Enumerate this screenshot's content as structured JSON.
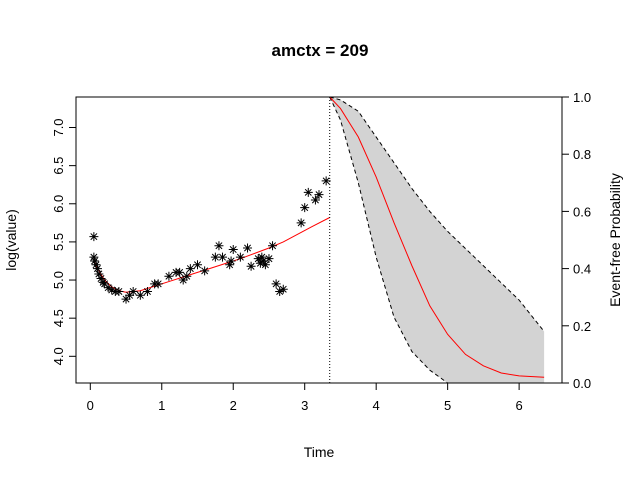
{
  "chart_data": {
    "type": "scatter",
    "title": "amctx = 209",
    "xlabel": "Time",
    "ylabel_left": "log(value)",
    "ylabel_right": "Event-free Probability",
    "xlim": [
      -0.2,
      6.6
    ],
    "ylim_left": [
      3.65,
      7.4
    ],
    "ylim_right": [
      0.0,
      1.0
    ],
    "x_ticks": [
      0,
      1,
      2,
      3,
      4,
      5,
      6
    ],
    "y_left_ticks": [
      4.0,
      4.5,
      5.0,
      5.5,
      6.0,
      6.5,
      7.0
    ],
    "y_right_ticks": [
      0.0,
      0.2,
      0.4,
      0.6,
      0.8,
      1.0
    ],
    "landmark_time": 3.35,
    "observations": {
      "marker": "asterisk",
      "points": [
        [
          0.05,
          5.57
        ],
        [
          0.05,
          5.3
        ],
        [
          0.06,
          5.25
        ],
        [
          0.08,
          5.2
        ],
        [
          0.1,
          5.15
        ],
        [
          0.12,
          5.08
        ],
        [
          0.15,
          5.02
        ],
        [
          0.18,
          4.97
        ],
        [
          0.2,
          4.95
        ],
        [
          0.25,
          4.9
        ],
        [
          0.3,
          4.87
        ],
        [
          0.35,
          4.85
        ],
        [
          0.4,
          4.85
        ],
        [
          0.5,
          4.75
        ],
        [
          0.55,
          4.8
        ],
        [
          0.6,
          4.85
        ],
        [
          0.7,
          4.8
        ],
        [
          0.8,
          4.85
        ],
        [
          0.9,
          4.95
        ],
        [
          0.95,
          4.95
        ],
        [
          1.1,
          5.05
        ],
        [
          1.2,
          5.1
        ],
        [
          1.25,
          5.1
        ],
        [
          1.3,
          5.0
        ],
        [
          1.35,
          5.05
        ],
        [
          1.4,
          5.15
        ],
        [
          1.5,
          5.2
        ],
        [
          1.6,
          5.12
        ],
        [
          1.75,
          5.3
        ],
        [
          1.8,
          5.45
        ],
        [
          1.85,
          5.3
        ],
        [
          1.95,
          5.2
        ],
        [
          1.97,
          5.25
        ],
        [
          2.0,
          5.4
        ],
        [
          2.1,
          5.3
        ],
        [
          2.2,
          5.42
        ],
        [
          2.25,
          5.18
        ],
        [
          2.35,
          5.28
        ],
        [
          2.38,
          5.22
        ],
        [
          2.4,
          5.3
        ],
        [
          2.42,
          5.25
        ],
        [
          2.45,
          5.2
        ],
        [
          2.5,
          5.28
        ],
        [
          2.55,
          5.45
        ],
        [
          2.6,
          4.95
        ],
        [
          2.65,
          4.85
        ],
        [
          2.7,
          4.88
        ],
        [
          2.95,
          5.75
        ],
        [
          3.0,
          5.95
        ],
        [
          3.05,
          6.15
        ],
        [
          3.15,
          6.05
        ],
        [
          3.2,
          6.12
        ],
        [
          3.3,
          6.3
        ]
      ]
    },
    "longitudinal_fit": {
      "color": "#ff0000",
      "x": [
        0.05,
        0.1,
        0.2,
        0.3,
        0.4,
        0.5,
        0.7,
        0.9,
        1.1,
        1.3,
        1.5,
        1.7,
        1.9,
        2.1,
        2.3,
        2.5,
        2.7,
        2.9,
        3.1,
        3.35
      ],
      "y": [
        5.25,
        5.15,
        5.0,
        4.91,
        4.86,
        4.84,
        4.86,
        4.92,
        4.98,
        5.04,
        5.1,
        5.16,
        5.22,
        5.28,
        5.35,
        5.42,
        5.5,
        5.6,
        5.7,
        5.82
      ]
    },
    "survival": {
      "line_color": "#ff0000",
      "band_color": "#d3d3d3",
      "x": [
        3.35,
        3.5,
        3.75,
        4.0,
        4.25,
        4.5,
        4.75,
        5.0,
        5.25,
        5.5,
        5.75,
        6.0,
        6.35
      ],
      "est": [
        1.0,
        0.96,
        0.86,
        0.72,
        0.56,
        0.41,
        0.27,
        0.17,
        0.1,
        0.06,
        0.035,
        0.025,
        0.02
      ],
      "lower": [
        1.0,
        0.92,
        0.7,
        0.44,
        0.23,
        0.11,
        0.045,
        0.0,
        0.0,
        0.0,
        0.0,
        0.0,
        0.0
      ],
      "upper": [
        1.0,
        0.99,
        0.95,
        0.86,
        0.77,
        0.68,
        0.6,
        0.53,
        0.47,
        0.41,
        0.35,
        0.29,
        0.18
      ]
    },
    "grid": false
  }
}
